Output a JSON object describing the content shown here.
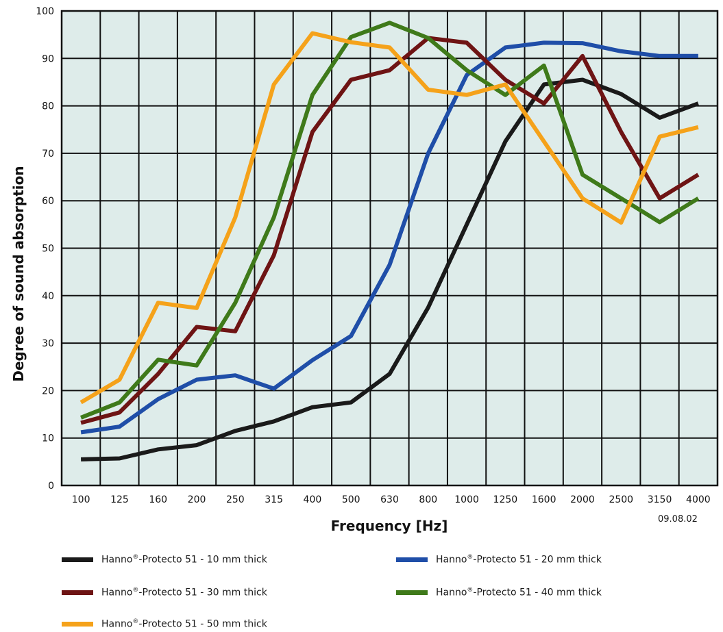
{
  "chart_data": {
    "type": "line",
    "title": "",
    "xlabel": "Frequency [Hz]",
    "ylabel": "Degree of sound absorption",
    "x": [
      "100",
      "125",
      "160",
      "200",
      "250",
      "315",
      "400",
      "500",
      "630",
      "800",
      "1000",
      "1250",
      "1600",
      "2000",
      "2500",
      "3150",
      "4000"
    ],
    "yticks": [
      "0",
      "10",
      "20",
      "30",
      "40",
      "50",
      "60",
      "70",
      "80",
      "90",
      "100"
    ],
    "ylim": [
      0,
      100
    ],
    "grid": true,
    "plot_background": "#deecea",
    "series": [
      {
        "name": "Hanno®-Protecto 51 - 10 mm thick",
        "color": "#1a1a1a",
        "values": [
          5.5,
          5.7,
          7.6,
          8.5,
          11.5,
          13.5,
          16.5,
          17.5,
          23.5,
          37.5,
          55,
          72.5,
          84.5,
          85.5,
          82.5,
          77.5,
          80.5
        ]
      },
      {
        "name": "Hanno®-Protecto 51 - 20 mm thick",
        "color": "#1f4ea8",
        "values": [
          11.2,
          12.4,
          18.2,
          22.3,
          23.2,
          20.4,
          26.4,
          31.5,
          46.5,
          70,
          86.5,
          92.3,
          93.3,
          93.2,
          91.5,
          90.5,
          90.5
        ]
      },
      {
        "name": "Hanno®-Protecto 51 - 30 mm thick",
        "color": "#6e1414",
        "values": [
          13.2,
          15.4,
          23.5,
          33.4,
          32.5,
          48.5,
          74.5,
          85.5,
          87.5,
          94.3,
          93.3,
          85.5,
          80.5,
          90.5,
          74.5,
          60.5,
          65.5
        ]
      },
      {
        "name": "Hanno®-Protecto 51 - 40 mm thick",
        "color": "#3f7a1a",
        "values": [
          14.3,
          17.5,
          26.5,
          25.3,
          38.5,
          56.5,
          82.3,
          94.5,
          97.5,
          94.3,
          87.5,
          82.3,
          88.5,
          65.5,
          60.5,
          55.5,
          60.5
        ]
      },
      {
        "name": "Hanno®-Protecto 51 - 50 mm thick",
        "color": "#f5a21a",
        "values": [
          17.5,
          22.3,
          38.5,
          37.4,
          56.5,
          84.5,
          95.3,
          93.4,
          92.3,
          83.4,
          82.3,
          84.5,
          72.5,
          60.5,
          55.4,
          73.5,
          75.5
        ]
      }
    ]
  },
  "legend": {
    "items": [
      {
        "brand": "Hanno",
        "reg": "®",
        "rest": "-Protecto 51 - 10 mm thick",
        "color": "#1a1a1a"
      },
      {
        "brand": "Hanno",
        "reg": "®",
        "rest": "-Protecto 51 - 20 mm thick",
        "color": "#1f4ea8"
      },
      {
        "brand": "Hanno",
        "reg": "®",
        "rest": "-Protecto 51 - 30 mm thick",
        "color": "#6e1414"
      },
      {
        "brand": "Hanno",
        "reg": "®",
        "rest": "-Protecto 51 - 40 mm thick",
        "color": "#3f7a1a"
      },
      {
        "brand": "Hanno",
        "reg": "®",
        "rest": "-Protecto 51 - 50 mm thick",
        "color": "#f5a21a"
      }
    ]
  },
  "date_stamp": "09.08.02"
}
